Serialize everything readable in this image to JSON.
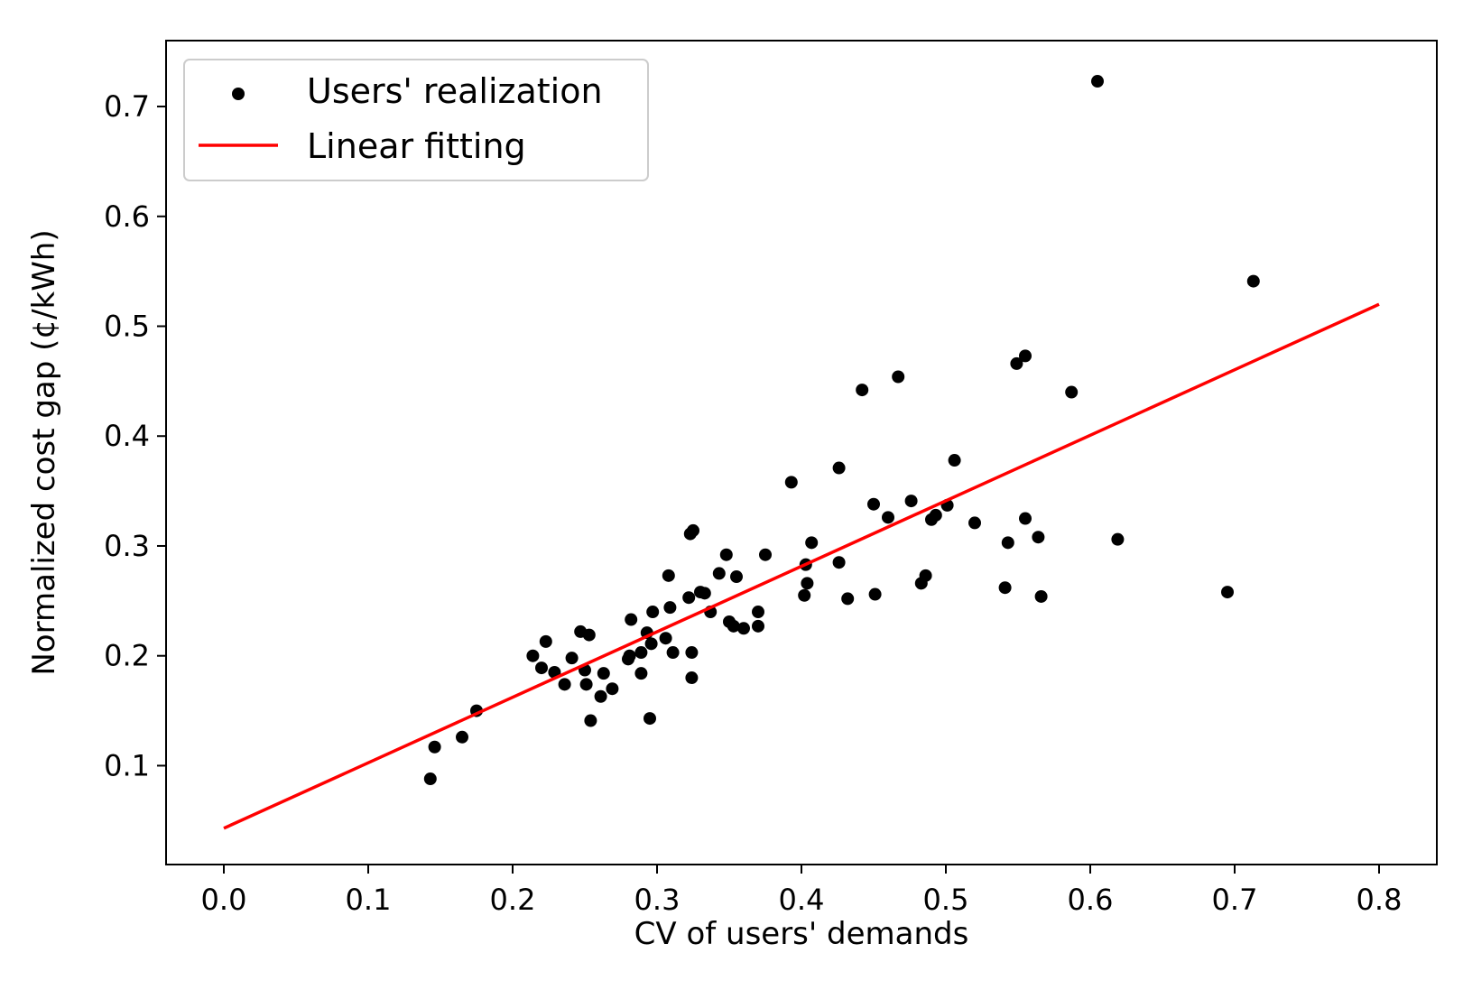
{
  "chart_data": {
    "type": "scatter",
    "title": "",
    "xlabel": "CV of users' demands",
    "ylabel": "Normalized cost gap (¢/kWh)",
    "xlim": [
      -0.04,
      0.84
    ],
    "ylim": [
      0.01,
      0.76
    ],
    "xticks": [
      0.0,
      0.1,
      0.2,
      0.3,
      0.4,
      0.5,
      0.6,
      0.7,
      0.8
    ],
    "xtick_labels": [
      "0.0",
      "0.1",
      "0.2",
      "0.3",
      "0.4",
      "0.5",
      "0.6",
      "0.7",
      "0.8"
    ],
    "yticks": [
      0.1,
      0.2,
      0.3,
      0.4,
      0.5,
      0.6,
      0.7
    ],
    "ytick_labels": [
      "0.1",
      "0.2",
      "0.3",
      "0.4",
      "0.5",
      "0.6",
      "0.7"
    ],
    "grid": false,
    "legend": {
      "position": "top-left",
      "entries": [
        {
          "label": "Users' realization",
          "kind": "marker",
          "color": "#000000"
        },
        {
          "label": "Linear fitting",
          "kind": "line",
          "color": "#ff0000"
        }
      ]
    },
    "series": [
      {
        "name": "Users' realization",
        "kind": "scatter",
        "color": "#000000",
        "points": [
          [
            0.143,
            0.088
          ],
          [
            0.146,
            0.117
          ],
          [
            0.165,
            0.126
          ],
          [
            0.175,
            0.15
          ],
          [
            0.214,
            0.2
          ],
          [
            0.22,
            0.189
          ],
          [
            0.223,
            0.213
          ],
          [
            0.229,
            0.185
          ],
          [
            0.236,
            0.174
          ],
          [
            0.241,
            0.198
          ],
          [
            0.247,
            0.222
          ],
          [
            0.25,
            0.187
          ],
          [
            0.251,
            0.174
          ],
          [
            0.253,
            0.219
          ],
          [
            0.254,
            0.141
          ],
          [
            0.261,
            0.163
          ],
          [
            0.263,
            0.184
          ],
          [
            0.269,
            0.17
          ],
          [
            0.28,
            0.197
          ],
          [
            0.281,
            0.2
          ],
          [
            0.282,
            0.233
          ],
          [
            0.289,
            0.203
          ],
          [
            0.289,
            0.184
          ],
          [
            0.293,
            0.221
          ],
          [
            0.295,
            0.143
          ],
          [
            0.296,
            0.211
          ],
          [
            0.297,
            0.24
          ],
          [
            0.306,
            0.216
          ],
          [
            0.308,
            0.273
          ],
          [
            0.309,
            0.244
          ],
          [
            0.311,
            0.203
          ],
          [
            0.322,
            0.253
          ],
          [
            0.323,
            0.311
          ],
          [
            0.325,
            0.314
          ],
          [
            0.324,
            0.203
          ],
          [
            0.324,
            0.18
          ],
          [
            0.33,
            0.258
          ],
          [
            0.333,
            0.257
          ],
          [
            0.337,
            0.24
          ],
          [
            0.343,
            0.275
          ],
          [
            0.348,
            0.292
          ],
          [
            0.35,
            0.231
          ],
          [
            0.353,
            0.227
          ],
          [
            0.355,
            0.272
          ],
          [
            0.36,
            0.225
          ],
          [
            0.37,
            0.227
          ],
          [
            0.37,
            0.24
          ],
          [
            0.375,
            0.292
          ],
          [
            0.393,
            0.358
          ],
          [
            0.402,
            0.255
          ],
          [
            0.403,
            0.283
          ],
          [
            0.404,
            0.266
          ],
          [
            0.407,
            0.303
          ],
          [
            0.426,
            0.371
          ],
          [
            0.426,
            0.285
          ],
          [
            0.432,
            0.252
          ],
          [
            0.442,
            0.442
          ],
          [
            0.45,
            0.338
          ],
          [
            0.451,
            0.256
          ],
          [
            0.46,
            0.326
          ],
          [
            0.467,
            0.454
          ],
          [
            0.476,
            0.341
          ],
          [
            0.483,
            0.266
          ],
          [
            0.486,
            0.273
          ],
          [
            0.49,
            0.324
          ],
          [
            0.493,
            0.328
          ],
          [
            0.501,
            0.337
          ],
          [
            0.506,
            0.378
          ],
          [
            0.52,
            0.321
          ],
          [
            0.541,
            0.262
          ],
          [
            0.543,
            0.303
          ],
          [
            0.549,
            0.466
          ],
          [
            0.555,
            0.473
          ],
          [
            0.555,
            0.325
          ],
          [
            0.564,
            0.308
          ],
          [
            0.566,
            0.254
          ],
          [
            0.587,
            0.44
          ],
          [
            0.605,
            0.723
          ],
          [
            0.619,
            0.306
          ],
          [
            0.695,
            0.258
          ],
          [
            0.713,
            0.541
          ]
        ]
      },
      {
        "name": "Linear fitting",
        "kind": "line",
        "color": "#ff0000",
        "x": [
          0.0,
          0.8
        ],
        "y": [
          0.043,
          0.52
        ]
      }
    ]
  }
}
